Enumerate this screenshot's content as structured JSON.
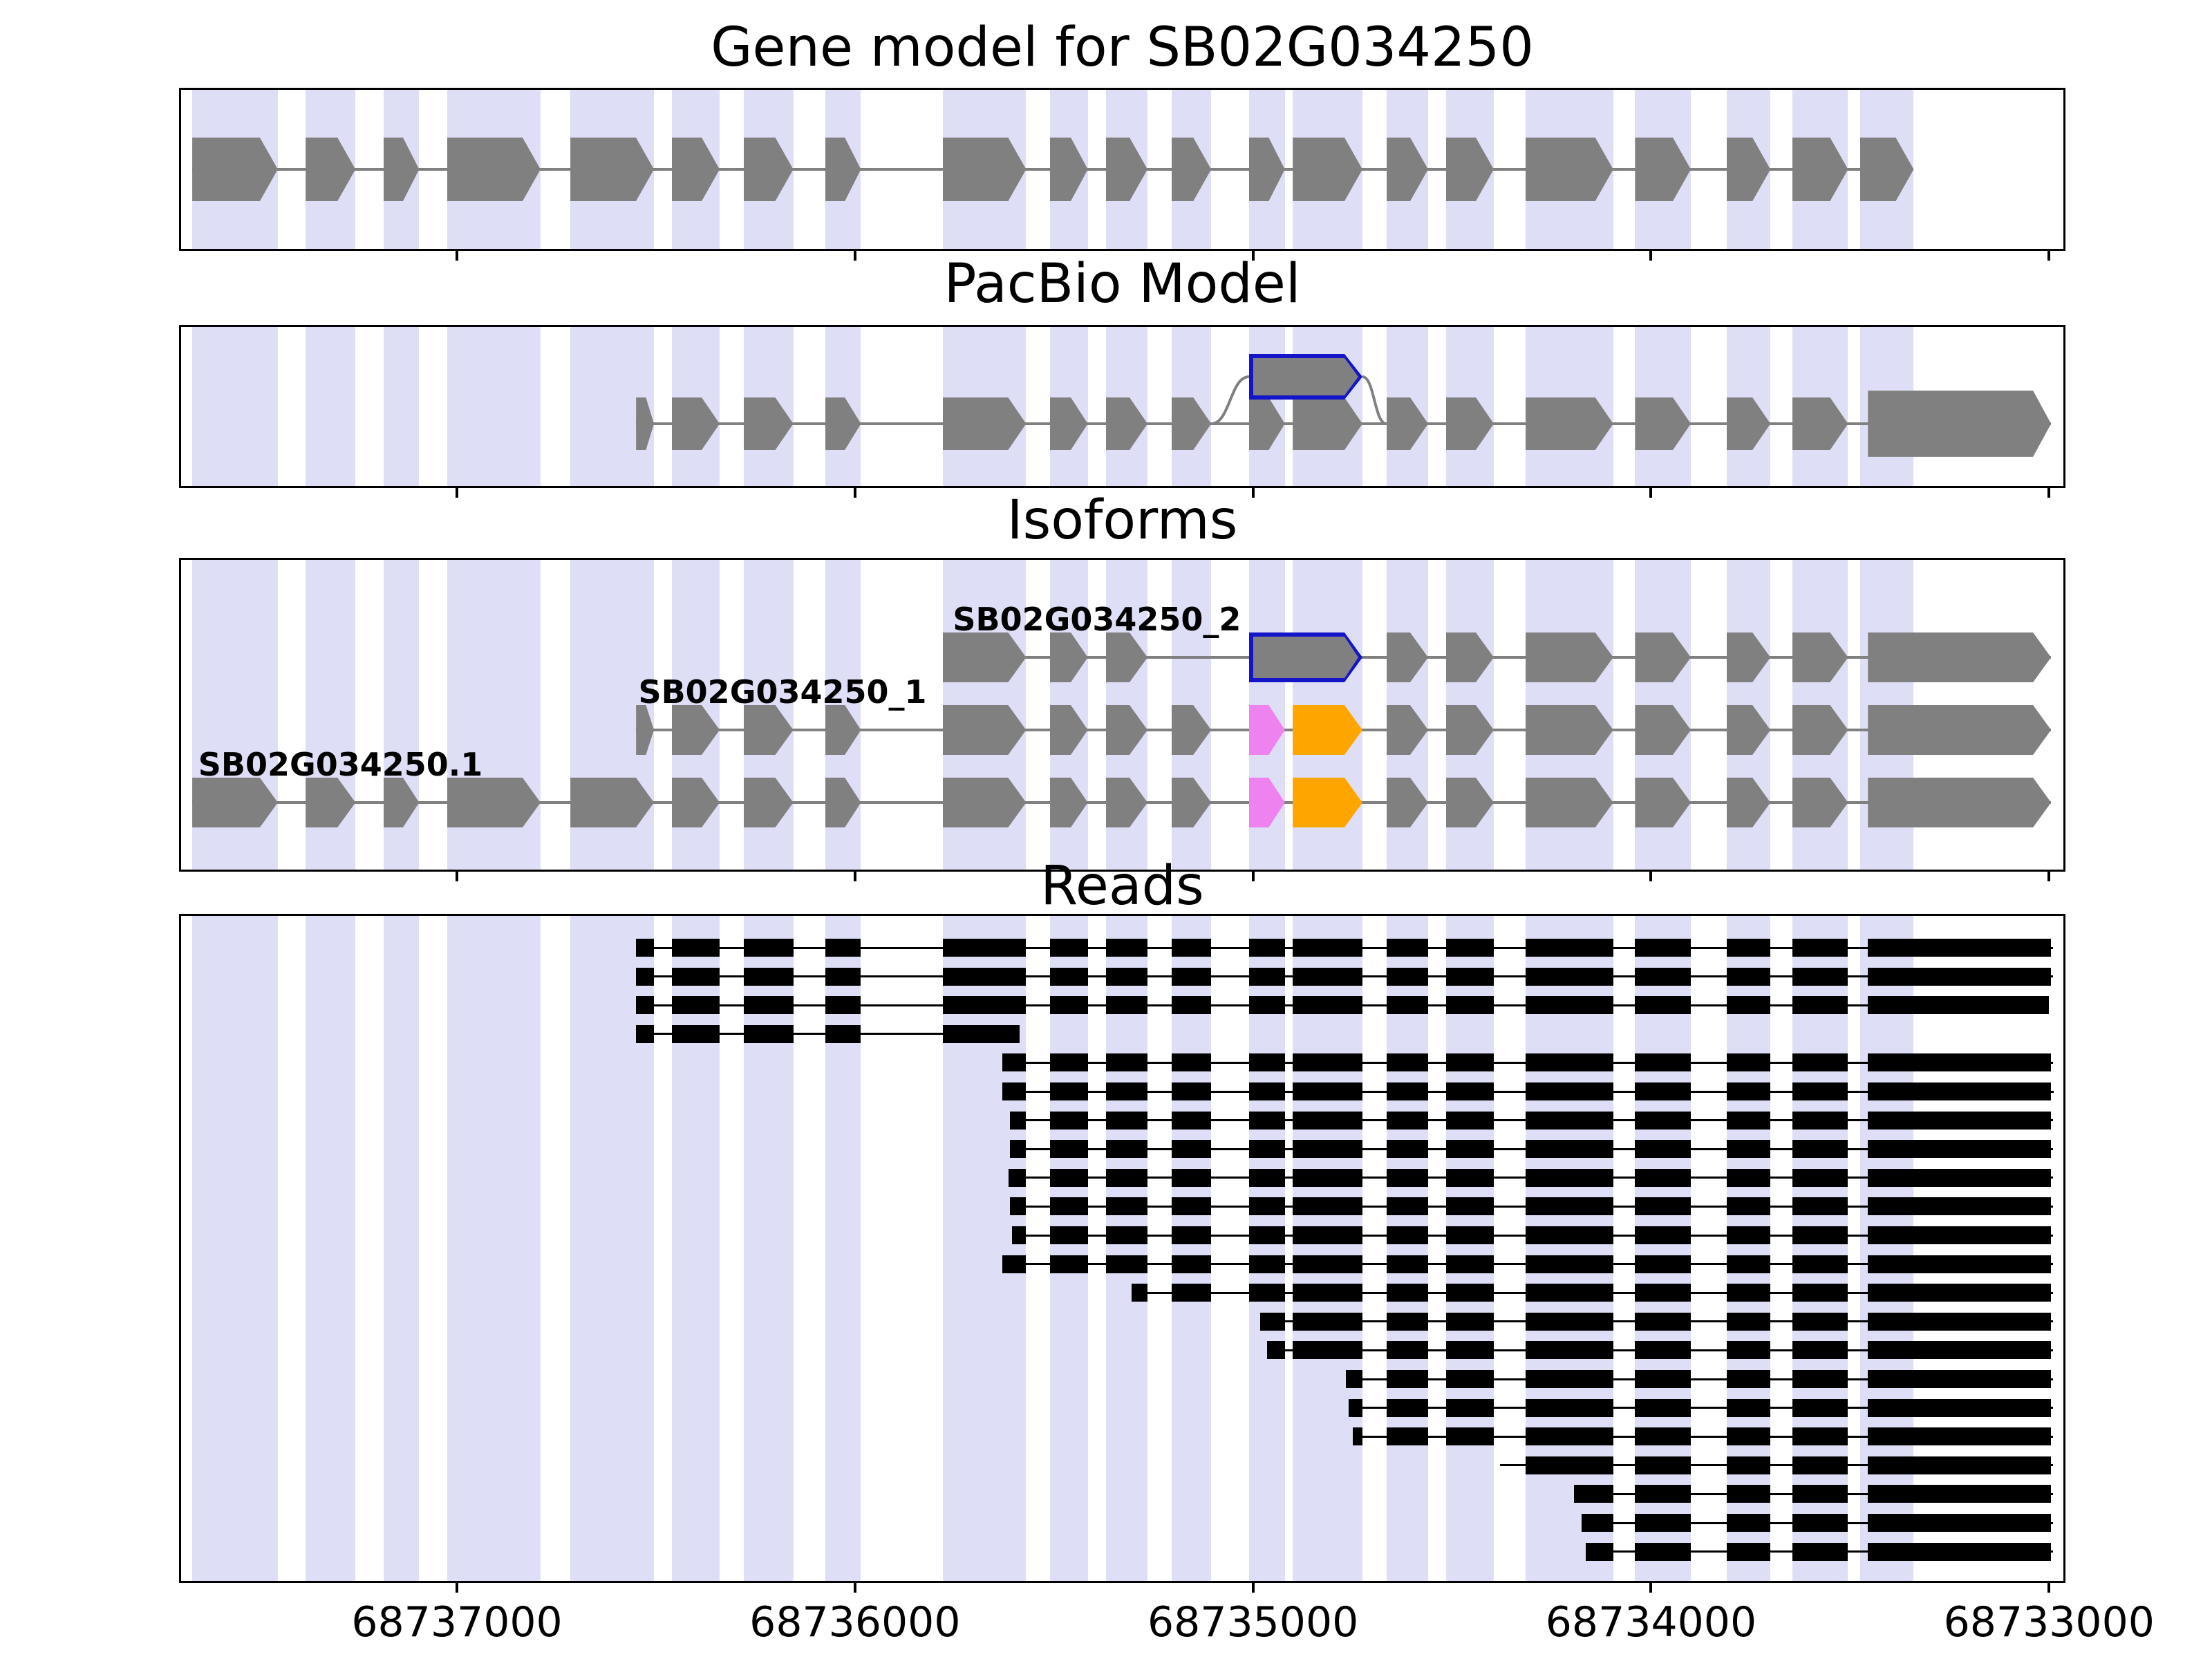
{
  "figure": {
    "titles": {
      "gene_model": "Gene model for SB02G034250",
      "pacbio": "PacBio Model",
      "isoforms": "Isoforms",
      "reads": "Reads"
    }
  },
  "chart_data": {
    "type": "genome-browser-tracks",
    "gene_id": "SB02G034250",
    "coordinate_axis": {
      "left_bp": 68737693,
      "right_bp": 68732964,
      "orientation": "decreasing-left-to-right",
      "tick_values": [
        68737000,
        68736000,
        68735000,
        68734000,
        68733000
      ],
      "tick_labels": [
        "68737000",
        "68736000",
        "68735000",
        "68734000",
        "68733000"
      ]
    },
    "colors": {
      "exon_fill": "#808080",
      "intron_line": "#808080",
      "stripe": "#dedef6",
      "novel_exon_outline": "#1414c8",
      "violet_exon": "#ee82ee",
      "orange_exon": "#ffa500",
      "read": "#000000",
      "text": "#000000"
    },
    "exon_stripes_bp": [
      [
        68737665,
        68737450
      ],
      [
        68737380,
        68737255
      ],
      [
        68737185,
        68737095
      ],
      [
        68737025,
        68736790
      ],
      [
        68736715,
        68736505
      ],
      [
        68736460,
        68736340
      ],
      [
        68736280,
        68736155
      ],
      [
        68736075,
        68735985
      ],
      [
        68735780,
        68735570
      ],
      [
        68735510,
        68735415
      ],
      [
        68735370,
        68735265
      ],
      [
        68735205,
        68735105
      ],
      [
        68735010,
        68734920
      ],
      [
        68734900,
        68734725
      ],
      [
        68734665,
        68734560
      ],
      [
        68734515,
        68734395
      ],
      [
        68734315,
        68734095
      ],
      [
        68734040,
        68733900
      ],
      [
        68733810,
        68733700
      ],
      [
        68733645,
        68733505
      ],
      [
        68733475,
        68733340
      ]
    ],
    "tracks": {
      "gene_model": {
        "exons": [
          [
            68737665,
            68737450
          ],
          [
            68737380,
            68737255
          ],
          [
            68737185,
            68737095
          ],
          [
            68737025,
            68736790
          ],
          [
            68736715,
            68736505
          ],
          [
            68736460,
            68736340
          ],
          [
            68736280,
            68736155
          ],
          [
            68736075,
            68735985
          ],
          [
            68735780,
            68735570
          ],
          [
            68735510,
            68735415
          ],
          [
            68735370,
            68735265
          ],
          [
            68735205,
            68735105
          ],
          [
            68735010,
            68734920
          ],
          [
            68734900,
            68734725
          ],
          [
            68734665,
            68734560
          ],
          [
            68734515,
            68734395
          ],
          [
            68734315,
            68734095
          ],
          [
            68734040,
            68733900
          ],
          [
            68733810,
            68733700
          ],
          [
            68733645,
            68733505
          ],
          [
            68733475,
            68733340
          ]
        ]
      },
      "pacbio": {
        "exons": [
          [
            68736550,
            68736505
          ],
          [
            68736460,
            68736340
          ],
          [
            68736280,
            68736155
          ],
          [
            68736075,
            68735985
          ],
          [
            68735780,
            68735570
          ],
          [
            68735510,
            68735415
          ],
          [
            68735370,
            68735265
          ],
          [
            68735205,
            68735105
          ],
          [
            68735010,
            68734920
          ],
          [
            68734900,
            68734725
          ],
          [
            68734665,
            68734560
          ],
          [
            68734515,
            68734395
          ],
          [
            68734315,
            68734095
          ],
          [
            68734040,
            68733900
          ],
          [
            68733810,
            68733700
          ],
          [
            68733645,
            68733505
          ],
          [
            68733455,
            68732995,
            "L"
          ]
        ],
        "novel_exon_bp": [
          68735010,
          68734725
        ],
        "arc_from_bp": 68735105,
        "arc_to_bp": 68734665
      },
      "isoforms": [
        {
          "label": "SB02G034250_2",
          "label_anchor_bp": 68735030,
          "label_align": "right",
          "exons": [
            [
              68735780,
              68735570
            ],
            [
              68735510,
              68735415
            ],
            [
              68735370,
              68735265
            ],
            [
              68735010,
              68734725,
              "b"
            ],
            [
              68734665,
              68734560
            ],
            [
              68734515,
              68734395
            ],
            [
              68734315,
              68734095
            ],
            [
              68734040,
              68733900
            ],
            [
              68733810,
              68733700
            ],
            [
              68733645,
              68733505
            ],
            [
              68733455,
              68732995
            ]
          ]
        },
        {
          "label": "SB02G034250_1",
          "label_anchor_bp": 68735820,
          "label_align": "right",
          "exons": [
            [
              68736550,
              68736505
            ],
            [
              68736460,
              68736340
            ],
            [
              68736280,
              68736155
            ],
            [
              68736075,
              68735985
            ],
            [
              68735780,
              68735570
            ],
            [
              68735510,
              68735415
            ],
            [
              68735370,
              68735265
            ],
            [
              68735205,
              68735105
            ],
            [
              68735010,
              68734920,
              "v"
            ],
            [
              68734900,
              68734725,
              "o"
            ],
            [
              68734665,
              68734560
            ],
            [
              68734515,
              68734395
            ],
            [
              68734315,
              68734095
            ],
            [
              68734040,
              68733900
            ],
            [
              68733810,
              68733700
            ],
            [
              68733645,
              68733505
            ],
            [
              68733455,
              68732995
            ]
          ]
        },
        {
          "label": "SB02G034250.1",
          "label_anchor_bp": 68737650,
          "label_align": "left",
          "exons": [
            [
              68737665,
              68737450
            ],
            [
              68737380,
              68737255
            ],
            [
              68737185,
              68737095
            ],
            [
              68737025,
              68736790
            ],
            [
              68736715,
              68736505
            ],
            [
              68736460,
              68736340
            ],
            [
              68736280,
              68736155
            ],
            [
              68736075,
              68735985
            ],
            [
              68735780,
              68735570
            ],
            [
              68735510,
              68735415
            ],
            [
              68735370,
              68735265
            ],
            [
              68735205,
              68735105
            ],
            [
              68735010,
              68734920,
              "v"
            ],
            [
              68734900,
              68734725,
              "o"
            ],
            [
              68734665,
              68734560
            ],
            [
              68734515,
              68734395
            ],
            [
              68734315,
              68734095
            ],
            [
              68734040,
              68733900
            ],
            [
              68733810,
              68733700
            ],
            [
              68733645,
              68733505
            ],
            [
              68733455,
              68732995
            ]
          ]
        }
      ],
      "reads": {
        "exon_chain_bp": [
          [
            68736715,
            68736505
          ],
          [
            68736460,
            68736340
          ],
          [
            68736280,
            68736155
          ],
          [
            68736075,
            68735985
          ],
          [
            68735780,
            68735570
          ],
          [
            68735510,
            68735415
          ],
          [
            68735370,
            68735265
          ],
          [
            68735205,
            68735105
          ],
          [
            68735010,
            68734920
          ],
          [
            68734900,
            68734725
          ],
          [
            68734665,
            68734560
          ],
          [
            68734515,
            68734395
          ],
          [
            68734315,
            68734095
          ],
          [
            68734040,
            68733900
          ],
          [
            68733810,
            68733700
          ],
          [
            68733645,
            68733505
          ],
          [
            68733455,
            68732995
          ]
        ],
        "reads_bp": [
          [
            68736551,
            68732990
          ],
          [
            68736551,
            68732990
          ],
          [
            68736551,
            68733000
          ],
          [
            68736551,
            68735586
          ],
          [
            68735629,
            68732990
          ],
          [
            68735629,
            68732988
          ],
          [
            68735611,
            68732990
          ],
          [
            68735611,
            68732990
          ],
          [
            68735615,
            68732990
          ],
          [
            68735611,
            68732990
          ],
          [
            68735605,
            68732990
          ],
          [
            68735629,
            68732990
          ],
          [
            68735305,
            68732990
          ],
          [
            68734982,
            68732990
          ],
          [
            68734964,
            68732990
          ],
          [
            68734767,
            68732990
          ],
          [
            68734760,
            68732990
          ],
          [
            68734749,
            68732990
          ],
          [
            68734379,
            68732990
          ],
          [
            68734193,
            68732990
          ],
          [
            68734175,
            68732990
          ],
          [
            68734164,
            68732990
          ]
        ]
      }
    }
  }
}
